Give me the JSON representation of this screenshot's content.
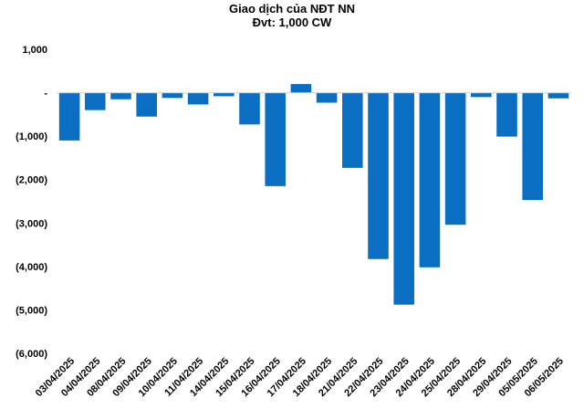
{
  "chart_data": {
    "type": "bar",
    "title": "Giao dịch của NĐT NN",
    "subtitle": "Đvt: 1,000 CW",
    "xlabel": "",
    "ylabel": "",
    "ylim": [
      -6000,
      1000
    ],
    "yticks": [
      {
        "value": 1000,
        "label": "1,000"
      },
      {
        "value": 0,
        "label": "-"
      },
      {
        "value": -1000,
        "label": "(1,000)"
      },
      {
        "value": -2000,
        "label": "(2,000)"
      },
      {
        "value": -3000,
        "label": "(3,000)"
      },
      {
        "value": -4000,
        "label": "(4,000)"
      },
      {
        "value": -5000,
        "label": "(5,000)"
      },
      {
        "value": -6000,
        "label": "(6,000)"
      }
    ],
    "grid": false,
    "legend": "none",
    "categories": [
      "03/04/2025",
      "04/04/2025",
      "08/04/2025",
      "09/04/2025",
      "10/04/2025",
      "11/04/2025",
      "14/04/2025",
      "15/04/2025",
      "16/04/2025",
      "17/04/2025",
      "18/04/2025",
      "21/04/2025",
      "22/04/2025",
      "23/04/2025",
      "24/04/2025",
      "25/04/2025",
      "28/04/2025",
      "29/04/2025",
      "05/05/2025",
      "06/05/2025"
    ],
    "values": [
      -1100,
      -400,
      -150,
      -550,
      -120,
      -270,
      -80,
      -730,
      -2150,
      200,
      -230,
      -1730,
      -3830,
      -4880,
      -4020,
      -3040,
      -100,
      -1010,
      -2470,
      -130
    ],
    "colors": {
      "bar": "#0a6fc2",
      "axis": "#d0d0d0",
      "text": "#000000"
    }
  }
}
